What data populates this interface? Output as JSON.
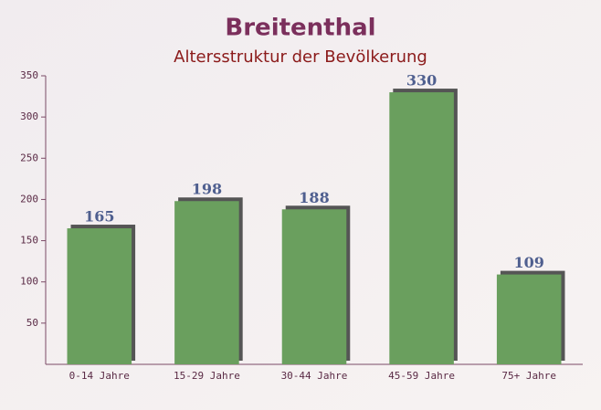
{
  "chart_data": {
    "type": "bar",
    "title": "Breitenthal",
    "subtitle": "Altersstruktur der Bevölkerung",
    "categories": [
      "0-14 Jahre",
      "15-29 Jahre",
      "30-44 Jahre",
      "45-59 Jahre",
      "75+ Jahre"
    ],
    "values": [
      165,
      198,
      188,
      330,
      109
    ],
    "color": "#6a9f5e",
    "ylim": [
      0,
      350
    ],
    "yticks": [
      50,
      100,
      150,
      200,
      250,
      300,
      350
    ]
  }
}
